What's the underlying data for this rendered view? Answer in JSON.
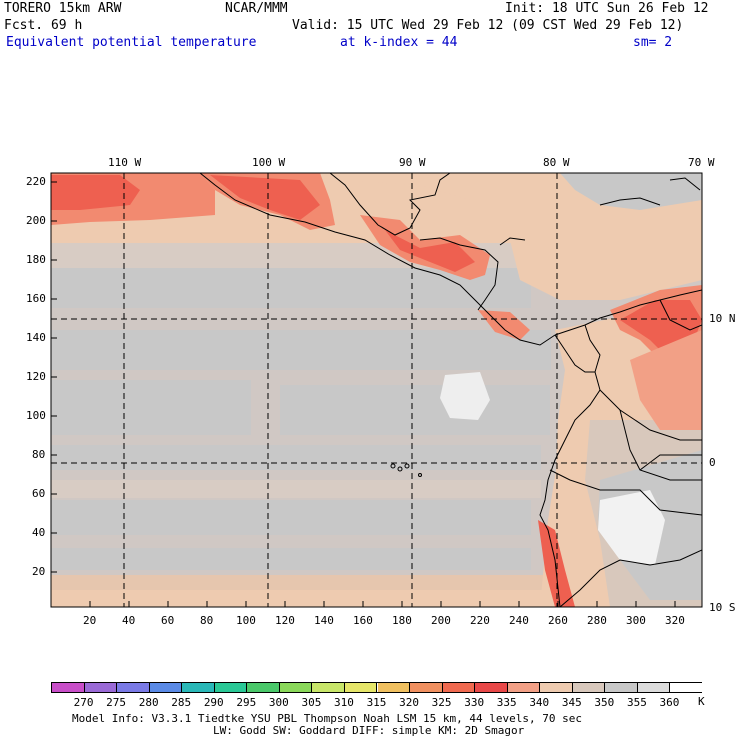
{
  "header": {
    "model": "TORERO  15km ARW",
    "org": "NCAR/MMM",
    "init": "Init: 18 UTC Sun 26 Feb 12",
    "fcst": "Fcst.   69 h",
    "valid": "Valid: 15 UTC Wed 29 Feb 12 (09 CST Wed 29 Feb 12)",
    "field": "Equivalent potential temperature",
    "level": "at k-index =  44",
    "smooth": "sm= 2"
  },
  "map": {
    "top_lon_labels": [
      "110 W",
      "100 W",
      "90 W",
      "80 W",
      "70 W"
    ],
    "right_lat_labels": [
      "10 N",
      "0",
      "10 S"
    ],
    "left_y_ticks": [
      "220",
      "200",
      "180",
      "160",
      "140",
      "120",
      "100",
      "80",
      "60",
      "40",
      "20"
    ],
    "bottom_x_ticks": [
      "20",
      "40",
      "60",
      "80",
      "100",
      "120",
      "140",
      "160",
      "180",
      "200",
      "220",
      "240",
      "260",
      "280",
      "300",
      "320"
    ]
  },
  "colorbar": {
    "labels": [
      "270",
      "275",
      "280",
      "285",
      "290",
      "295",
      "300",
      "305",
      "310",
      "315",
      "320",
      "325",
      "330",
      "335",
      "340",
      "345",
      "350",
      "355",
      "360"
    ],
    "unit": "K",
    "colors": [
      "#c84ec8",
      "#9a6ad6",
      "#7a7ae6",
      "#5a8ae6",
      "#2ab8b8",
      "#2ac896",
      "#4ac86a",
      "#8ad85a",
      "#c8e66a",
      "#e6e66a",
      "#f0c060",
      "#f09060",
      "#f06a50",
      "#e84848",
      "#f2a086",
      "#eecbb0",
      "#d8c8bc",
      "#c8c8c8",
      "#dcdcdc",
      "#ffffff"
    ]
  },
  "footer": {
    "line1": "Model Info: V3.3.1     Tiedtke YSU PBL  Thompson     Noah LSM  15 km,    44 levels,    70 sec",
    "line2": "LW: Godd SW: Goddard DIFF: simple KM: 2D Smagor"
  }
}
